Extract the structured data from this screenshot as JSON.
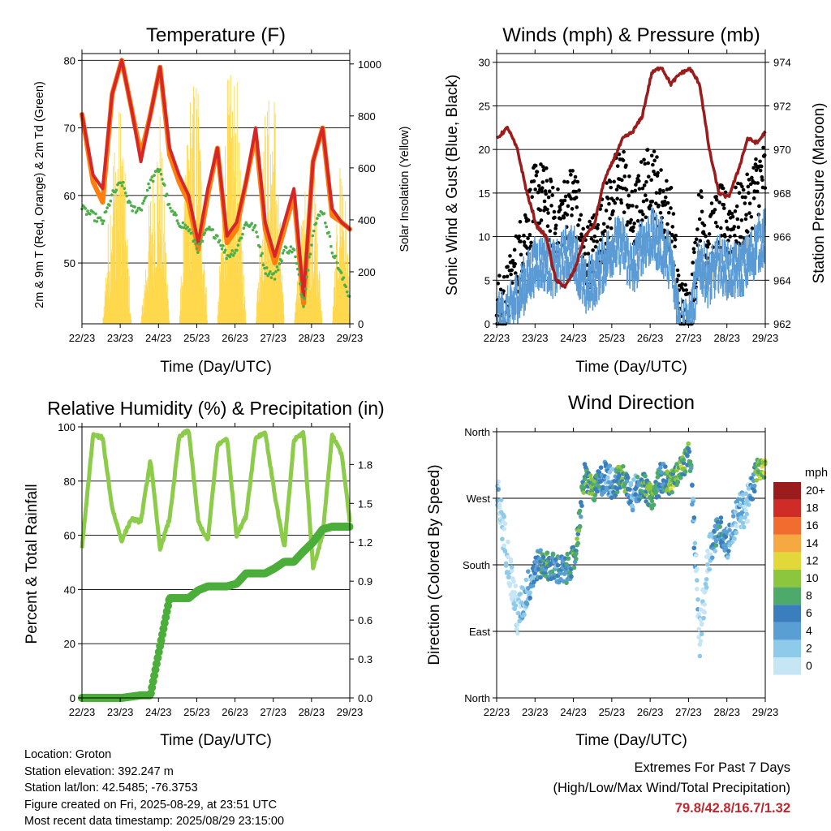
{
  "days": [
    "22/23",
    "23/23",
    "24/23",
    "25/23",
    "26/23",
    "27/23",
    "28/23",
    "29/23"
  ],
  "xlabel": "Time (Day/UTC)",
  "colors": {
    "temp_2m": "#d62728",
    "temp_9m": "#ff7f0e",
    "dewpoint": "#4daf4a",
    "insolation": "#ffd84d",
    "gust": "#000000",
    "wind": "#5b9bd5",
    "pressure": "#9b1c1c",
    "rh": "#8ccc4a",
    "rain": "#4cae3a"
  },
  "chart_data": [
    {
      "type": "line",
      "title": "Temperature (F)",
      "xlabel": "Time (Day/UTC)",
      "ylabel": "2m & 9m T (Red, Orange) & 2m Td (Green)",
      "ylabel_right": "Solar Insolation (Yellow)",
      "ylim": [
        41,
        81
      ],
      "ylim_right": [
        0,
        1040
      ],
      "yticks": [
        "50",
        "60",
        "70",
        "80"
      ],
      "yticks_right": [
        "0",
        "200",
        "400",
        "600",
        "800",
        "1000"
      ],
      "x": [
        22.96,
        23.25,
        23.5,
        23.75,
        24.0,
        24.25,
        24.5,
        24.75,
        25.0,
        25.25,
        25.5,
        25.75,
        26.0,
        26.25,
        26.5,
        26.75,
        27.0,
        27.25,
        27.5,
        27.75,
        28.0,
        28.25,
        28.5,
        28.75,
        29.0,
        29.25,
        29.5,
        29.75,
        29.96
      ],
      "series": [
        {
          "name": "2m T",
          "values": [
            72,
            63,
            61,
            75,
            80,
            73,
            65,
            72,
            79,
            67,
            63,
            60,
            53,
            61,
            67,
            54,
            56,
            62,
            70,
            56,
            51,
            56,
            61,
            45,
            65,
            70,
            58,
            56,
            55
          ]
        },
        {
          "name": "9m T",
          "values": [
            72,
            62,
            59,
            75,
            80,
            73,
            66,
            72,
            79,
            66,
            62,
            59,
            52,
            60,
            67,
            53,
            55,
            62,
            69,
            55,
            50,
            55,
            60,
            44,
            65,
            70,
            57,
            56,
            55
          ]
        },
        {
          "name": "2m Td",
          "values": [
            58,
            57,
            56,
            60,
            62,
            58,
            58,
            62,
            64,
            58,
            56,
            55,
            52,
            55,
            54,
            51,
            52,
            56,
            55,
            49,
            48,
            52,
            52,
            44,
            55,
            58,
            52,
            48,
            45
          ]
        },
        {
          "name": "Solar Insolation",
          "values": [
            0,
            0,
            0,
            700,
            900,
            0,
            0,
            550,
            850,
            0,
            0,
            900,
            1000,
            0,
            0,
            950,
            1000,
            0,
            0,
            850,
            950,
            0,
            0,
            500,
            700,
            0,
            0,
            800,
            150
          ]
        }
      ]
    },
    {
      "type": "scatter",
      "title": "Winds (mph) & Pressure (mb)",
      "xlabel": "Time (Day/UTC)",
      "ylabel": "Sonic Wind & Gust (Blue, Black)",
      "ylabel_right": "Station Pressure (Maroon)",
      "ylim": [
        0,
        31
      ],
      "ylim_right": [
        962,
        974.4
      ],
      "yticks": [
        "0",
        "5",
        "10",
        "15",
        "20",
        "25",
        "30"
      ],
      "yticks_right": [
        "962",
        "964",
        "966",
        "968",
        "970",
        "972",
        "974"
      ],
      "x": [
        22.96,
        23.25,
        23.5,
        23.75,
        24.0,
        24.25,
        24.5,
        24.75,
        25.0,
        25.25,
        25.5,
        25.75,
        26.0,
        26.25,
        26.5,
        26.75,
        27.0,
        27.25,
        27.5,
        27.75,
        28.0,
        28.25,
        28.5,
        28.75,
        29.0,
        29.25,
        29.5,
        29.75,
        29.96
      ],
      "series": [
        {
          "name": "Wind",
          "values": [
            1,
            2,
            4,
            6,
            8,
            8,
            7,
            9,
            9,
            5,
            6,
            8,
            10,
            10,
            7,
            10,
            11,
            10,
            8,
            1,
            1,
            8,
            6,
            8,
            7,
            7,
            8,
            10,
            11
          ]
        },
        {
          "name": "Gust",
          "values": [
            2,
            4,
            8,
            12,
            16,
            15,
            12,
            14,
            16,
            8,
            10,
            12,
            16,
            18,
            12,
            16,
            18,
            15,
            13,
            2,
            2,
            13,
            10,
            13,
            12,
            13,
            14,
            17,
            18
          ]
        },
        {
          "name": "Pressure",
          "values": [
            970.5,
            971,
            970,
            968,
            966.5,
            966,
            964,
            963.7,
            964.5,
            966,
            966.5,
            968.5,
            969.5,
            970.5,
            970.8,
            971.5,
            973.5,
            973.8,
            973,
            973.5,
            973.7,
            973,
            970,
            968,
            967.8,
            969,
            970.5,
            970.3,
            970.8
          ]
        }
      ]
    },
    {
      "type": "line",
      "title": "Relative Humidity (%) & Precipitation (in)",
      "xlabel": "Time (Day/UTC)",
      "ylabel": "Percent & Total Rainfall",
      "ylim": [
        0,
        100
      ],
      "ylim_right": [
        0,
        2.09
      ],
      "yticks": [
        "0",
        "20",
        "40",
        "60",
        "80",
        "100"
      ],
      "yticks_right": [
        "0.0",
        "0.3",
        "0.6",
        "0.9",
        "1.2",
        "1.5",
        "1.8"
      ],
      "x": [
        22.96,
        23.25,
        23.5,
        23.75,
        24.0,
        24.25,
        24.5,
        24.75,
        25.0,
        25.25,
        25.5,
        25.75,
        26.0,
        26.25,
        26.5,
        26.75,
        27.0,
        27.25,
        27.5,
        27.75,
        28.0,
        28.25,
        28.5,
        28.75,
        29.0,
        29.25,
        29.5,
        29.75,
        29.96
      ],
      "series": [
        {
          "name": "Relative Humidity",
          "values": [
            55,
            97,
            96,
            70,
            58,
            66,
            65,
            88,
            55,
            66,
            96,
            99,
            65,
            58,
            93,
            96,
            60,
            67,
            96,
            98,
            75,
            55,
            95,
            98,
            48,
            60,
            97,
            90,
            65
          ]
        },
        {
          "name": "Total Rainfall",
          "values": [
            0,
            0,
            0,
            0,
            0,
            0.01,
            0.02,
            0.02,
            0.4,
            0.77,
            0.77,
            0.77,
            0.83,
            0.86,
            0.86,
            0.86,
            0.88,
            0.96,
            0.96,
            0.96,
            1.0,
            1.05,
            1.05,
            1.13,
            1.2,
            1.3,
            1.32,
            1.32,
            1.32
          ]
        }
      ]
    },
    {
      "type": "scatter",
      "title": "Wind Direction",
      "xlabel": "Time (Day/UTC)",
      "ylabel": "Direction (Colored By Speed)",
      "ylim": [
        0,
        360
      ],
      "yticks": [
        "North",
        "East",
        "South",
        "West",
        "North"
      ],
      "colorbar_title": "mph",
      "colorbar_labels": [
        "0",
        "2",
        "4",
        "6",
        "8",
        "10",
        "12",
        "14",
        "16",
        "18",
        "20+"
      ],
      "colorbar_colors": [
        "#c6e6f6",
        "#8ecae9",
        "#5a9fd4",
        "#3a7ebd",
        "#4daa6a",
        "#8cc63e",
        "#e2d83a",
        "#f7a941",
        "#f26b2f",
        "#cf2b27",
        "#9b1c1c"
      ],
      "x": [
        23.0,
        23.5,
        24.0,
        24.25,
        24.5,
        24.75,
        25.0,
        25.25,
        25.5,
        25.75,
        26.0,
        26.25,
        26.5,
        26.75,
        27.0,
        27.25,
        27.5,
        27.75,
        28.0,
        28.25,
        28.5,
        28.75,
        29.0,
        29.25,
        29.5,
        29.75,
        29.95
      ],
      "series": [
        {
          "name": "Direction",
          "values": [
            270,
            110,
            180,
            180,
            175,
            170,
            190,
            300,
            280,
            300,
            290,
            300,
            275,
            290,
            270,
            300,
            290,
            310,
            330,
            80,
            200,
            230,
            210,
            250,
            260,
            310,
            310
          ]
        },
        {
          "name": "Speed",
          "values": [
            2,
            1,
            6,
            8,
            6,
            6,
            8,
            8,
            10,
            4,
            6,
            10,
            4,
            8,
            10,
            6,
            10,
            10,
            8,
            1,
            2,
            8,
            4,
            4,
            2,
            10,
            12
          ]
        }
      ]
    }
  ],
  "info": {
    "location": "Location: Groton",
    "elevation": "Station elevation: 392.247 m",
    "latlon": "Station lat/lon: 42.5485; -76.3753",
    "created": "Figure created on Fri, 2025-08-29, at 23:51 UTC",
    "recent": "Most recent data timestamp: 2025/08/29 23:15:00"
  },
  "extremes": {
    "title": "Extremes For Past 7 Days",
    "subtitle": "(High/Low/Max Wind/Total Precipitation)",
    "values": "79.8/42.8/16.7/1.32"
  }
}
